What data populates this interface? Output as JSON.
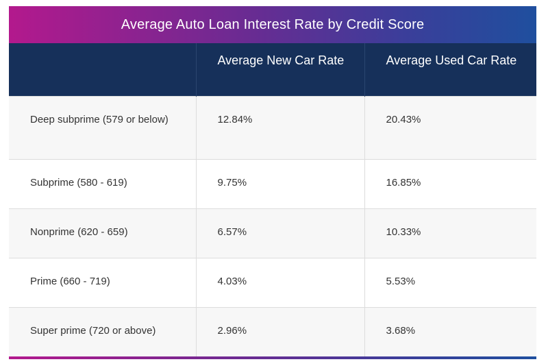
{
  "title": "Average Auto Loan Interest Rate by Credit Score",
  "header": {
    "col1": "",
    "col2": "Average New Car Rate",
    "col3": "Average Used Car Rate"
  },
  "rows": [
    {
      "tier": "Deep subprime (579 or below)",
      "new_rate": "12.84%",
      "used_rate": "20.43%"
    },
    {
      "tier": "Subprime (580 - 619)",
      "new_rate": "9.75%",
      "used_rate": "16.85%"
    },
    {
      "tier": "Nonprime (620 - 659)",
      "new_rate": "6.57%",
      "used_rate": "10.33%"
    },
    {
      "tier": "Prime (660 - 719)",
      "new_rate": "4.03%",
      "used_rate": "5.53%"
    },
    {
      "tier": "Super prime (720 or above)",
      "new_rate": "2.96%",
      "used_rate": "3.68%"
    }
  ],
  "colors": {
    "header_background": "#16305a",
    "gradient_start": "#b3198d",
    "gradient_end": "#1f4f9e"
  }
}
